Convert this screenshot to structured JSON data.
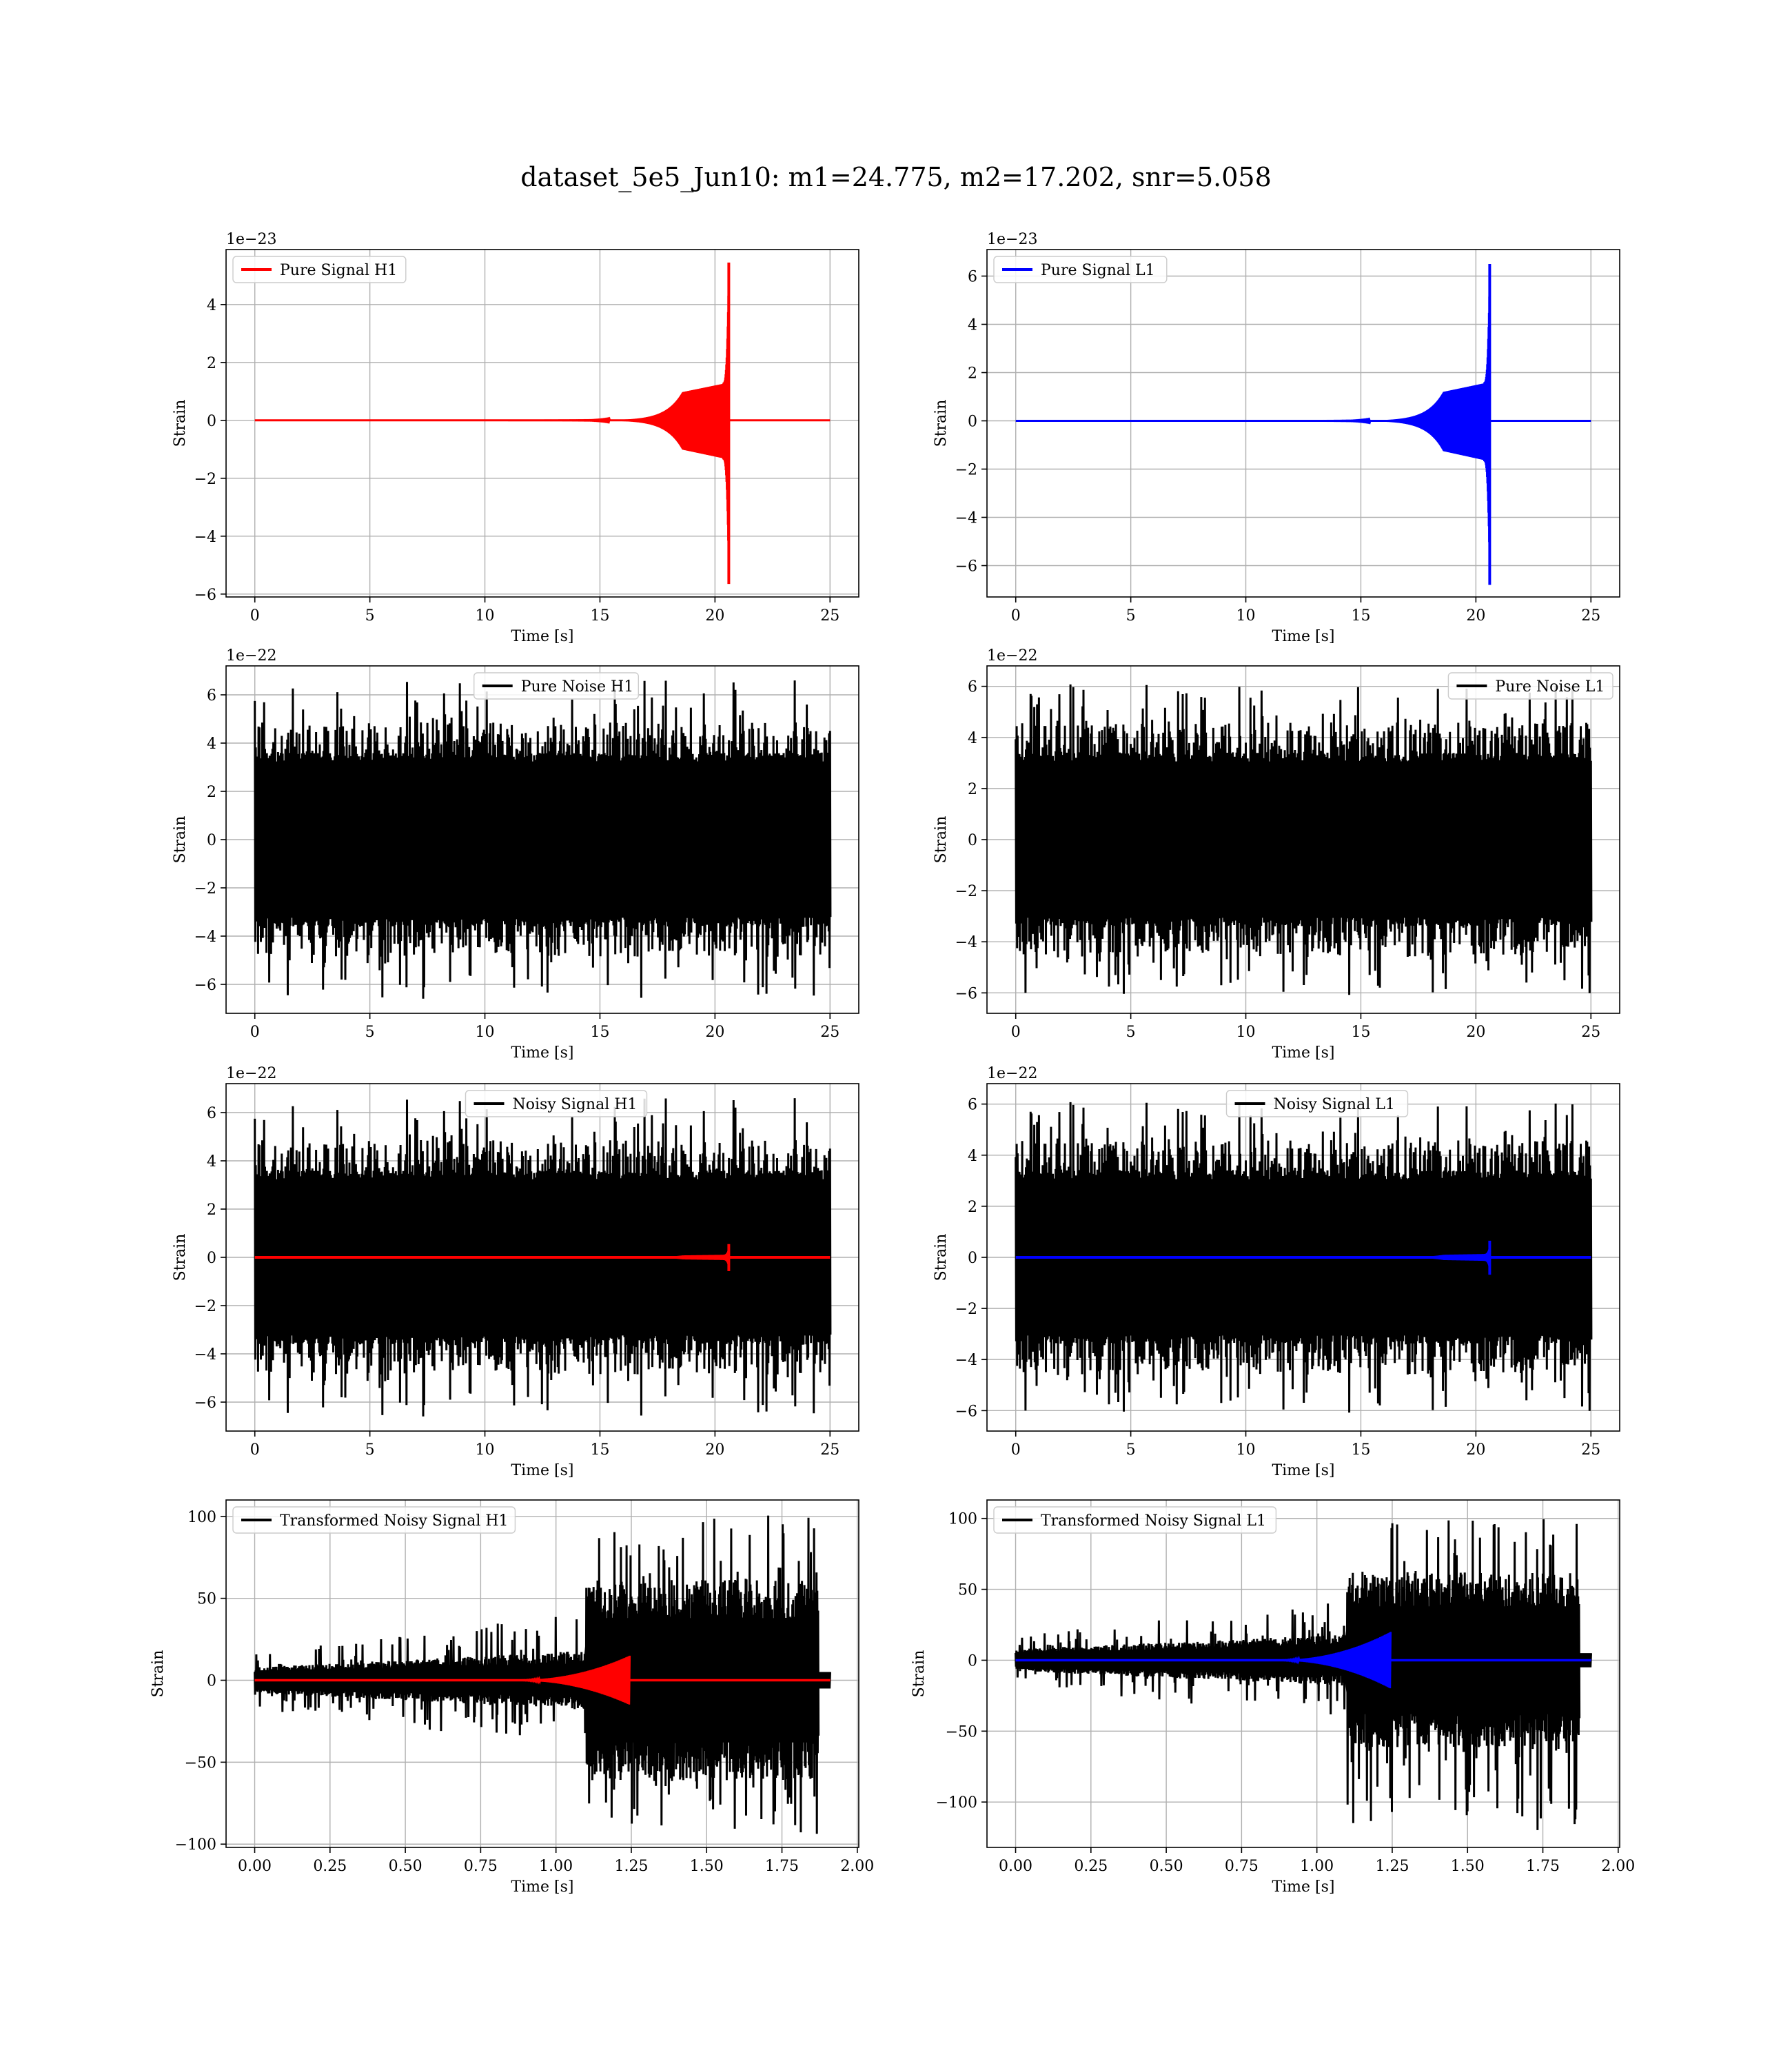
{
  "figure": {
    "title": "dataset_5e5_Jun10: m1=24.775, m2=17.202, snr=5.058"
  },
  "chart_data": [
    {
      "type": "line",
      "legend": "Pure Signal H1",
      "legend_position": "upper left",
      "color": "#ff0000",
      "kind": "chirp",
      "xlabel": "Time [s]",
      "ylabel": "Strain",
      "offset_text": "1e−23",
      "xlim": [
        -1.25,
        26.25
      ],
      "ylim": [
        -6.1,
        5.9
      ],
      "xticks": [
        0,
        5,
        10,
        15,
        20,
        25
      ],
      "xtick_labels": [
        "0",
        "5",
        "10",
        "15",
        "20",
        "25"
      ],
      "yticks": [
        -6,
        -4,
        -2,
        0,
        2,
        4
      ],
      "ytick_labels": [
        "−6",
        "−4",
        "−2",
        "0",
        "2",
        "4"
      ],
      "grid": true,
      "signal": {
        "duration": 25,
        "merger_time": 20.6,
        "peak_pos": 5.45,
        "peak_neg": -5.65,
        "plateau": 1.3
      }
    },
    {
      "type": "line",
      "legend": "Pure Signal L1",
      "legend_position": "upper left",
      "color": "#0000ff",
      "kind": "chirp",
      "xlabel": "Time [s]",
      "ylabel": "Strain",
      "offset_text": "1e−23",
      "xlim": [
        -1.25,
        26.25
      ],
      "ylim": [
        -7.3,
        7.1
      ],
      "xticks": [
        0,
        5,
        10,
        15,
        20,
        25
      ],
      "xtick_labels": [
        "0",
        "5",
        "10",
        "15",
        "20",
        "25"
      ],
      "yticks": [
        -6,
        -4,
        -2,
        0,
        2,
        4,
        6
      ],
      "ytick_labels": [
        "−6",
        "−4",
        "−2",
        "0",
        "2",
        "4",
        "6"
      ],
      "grid": true,
      "signal": {
        "duration": 25,
        "merger_time": 20.6,
        "peak_pos": 6.5,
        "peak_neg": -6.8,
        "plateau": 1.6
      }
    },
    {
      "type": "line",
      "legend": "Pure Noise H1",
      "legend_position": "upper center",
      "color": "#000000",
      "kind": "noise",
      "xlabel": "Time [s]",
      "ylabel": "Strain",
      "offset_text": "1e−22",
      "xlim": [
        -1.25,
        26.25
      ],
      "ylim": [
        -7.2,
        7.2
      ],
      "xticks": [
        0,
        5,
        10,
        15,
        20,
        25
      ],
      "xtick_labels": [
        "0",
        "5",
        "10",
        "15",
        "20",
        "25"
      ],
      "yticks": [
        -6,
        -4,
        -2,
        0,
        2,
        4,
        6
      ],
      "ytick_labels": [
        "−6",
        "−4",
        "−2",
        "0",
        "2",
        "4",
        "6"
      ],
      "grid": true,
      "noise": {
        "duration": 25,
        "band": 3.6,
        "max": 6.6,
        "min": -6.6,
        "seed": 11
      }
    },
    {
      "type": "line",
      "legend": "Pure Noise L1",
      "legend_position": "upper right",
      "color": "#000000",
      "kind": "noise",
      "xlabel": "Time [s]",
      "ylabel": "Strain",
      "offset_text": "1e−22",
      "xlim": [
        -1.25,
        26.25
      ],
      "ylim": [
        -6.8,
        6.8
      ],
      "xticks": [
        0,
        5,
        10,
        15,
        20,
        25
      ],
      "xtick_labels": [
        "0",
        "5",
        "10",
        "15",
        "20",
        "25"
      ],
      "yticks": [
        -6,
        -4,
        -2,
        0,
        2,
        4,
        6
      ],
      "ytick_labels": [
        "−6",
        "−4",
        "−2",
        "0",
        "2",
        "4",
        "6"
      ],
      "grid": true,
      "noise": {
        "duration": 25,
        "band": 3.4,
        "max": 6.1,
        "min": -6.1,
        "seed": 23
      }
    },
    {
      "type": "line",
      "legend": "Noisy Signal H1",
      "legend_position": "upper center",
      "color": "#000000",
      "overlay_color": "#ff0000",
      "kind": "noisy",
      "xlabel": "Time [s]",
      "ylabel": "Strain",
      "offset_text": "1e−22",
      "xlim": [
        -1.25,
        26.25
      ],
      "ylim": [
        -7.2,
        7.2
      ],
      "xticks": [
        0,
        5,
        10,
        15,
        20,
        25
      ],
      "xtick_labels": [
        "0",
        "5",
        "10",
        "15",
        "20",
        "25"
      ],
      "yticks": [
        -6,
        -4,
        -2,
        0,
        2,
        4,
        6
      ],
      "ytick_labels": [
        "−6",
        "−4",
        "−2",
        "0",
        "2",
        "4",
        "6"
      ],
      "grid": true,
      "noise": {
        "duration": 25,
        "band": 3.6,
        "max": 6.6,
        "min": -6.6,
        "seed": 11
      },
      "signal": {
        "duration": 25,
        "merger_time": 20.6,
        "peak_pos": 0.55,
        "peak_neg": -0.57,
        "plateau": 0.13
      }
    },
    {
      "type": "line",
      "legend": "Noisy Signal L1",
      "legend_position": "upper center",
      "color": "#000000",
      "overlay_color": "#0000ff",
      "kind": "noisy",
      "xlabel": "Time [s]",
      "ylabel": "Strain",
      "offset_text": "1e−22",
      "xlim": [
        -1.25,
        26.25
      ],
      "ylim": [
        -6.8,
        6.8
      ],
      "xticks": [
        0,
        5,
        10,
        15,
        20,
        25
      ],
      "xtick_labels": [
        "0",
        "5",
        "10",
        "15",
        "20",
        "25"
      ],
      "yticks": [
        -6,
        -4,
        -2,
        0,
        2,
        4,
        6
      ],
      "ytick_labels": [
        "−6",
        "−4",
        "−2",
        "0",
        "2",
        "4",
        "6"
      ],
      "grid": true,
      "noise": {
        "duration": 25,
        "band": 3.4,
        "max": 6.1,
        "min": -6.1,
        "seed": 23
      },
      "signal": {
        "duration": 25,
        "merger_time": 20.6,
        "peak_pos": 0.65,
        "peak_neg": -0.68,
        "plateau": 0.16
      }
    },
    {
      "type": "line",
      "legend": "Transformed Noisy Signal H1",
      "legend_position": "upper left",
      "color": "#000000",
      "overlay_color": "#ff0000",
      "kind": "transformed",
      "xlabel": "Time [s]",
      "ylabel": "Strain",
      "offset_text": "",
      "xlim": [
        -0.095,
        2.005
      ],
      "ylim": [
        -102,
        110
      ],
      "xticks": [
        0.0,
        0.25,
        0.5,
        0.75,
        1.0,
        1.25,
        1.5,
        1.75,
        2.0
      ],
      "xtick_labels": [
        "0.00",
        "0.25",
        "0.50",
        "0.75",
        "1.00",
        "1.25",
        "1.50",
        "1.75",
        "2.00"
      ],
      "yticks": [
        -100,
        -50,
        0,
        50,
        100
      ],
      "ytick_labels": [
        "−100",
        "−50",
        "0",
        "50",
        "100"
      ],
      "grid": true,
      "transformed": {
        "end": 1.91,
        "noise_end": 1.87,
        "jump": 1.1,
        "low_band": 6,
        "high_band": 38,
        "max": 102,
        "min": -95,
        "merger": 1.245,
        "signal_peak": 15,
        "seed": 37
      }
    },
    {
      "type": "line",
      "legend": "Transformed Noisy Signal L1",
      "legend_position": "upper left",
      "color": "#000000",
      "overlay_color": "#0000ff",
      "kind": "transformed",
      "xlabel": "Time [s]",
      "ylabel": "Strain",
      "offset_text": "",
      "xlim": [
        -0.095,
        2.005
      ],
      "ylim": [
        -132,
        113
      ],
      "xticks": [
        0.0,
        0.25,
        0.5,
        0.75,
        1.0,
        1.25,
        1.5,
        1.75,
        2.0
      ],
      "xtick_labels": [
        "0.00",
        "0.25",
        "0.50",
        "0.75",
        "1.00",
        "1.25",
        "1.50",
        "1.75",
        "2.00"
      ],
      "yticks": [
        -100,
        -50,
        0,
        50,
        100
      ],
      "ytick_labels": [
        "−100",
        "−50",
        "0",
        "50",
        "100"
      ],
      "grid": true,
      "transformed": {
        "end": 1.91,
        "noise_end": 1.87,
        "jump": 1.1,
        "low_band": 6,
        "high_band": 38,
        "max": 100,
        "min": -123,
        "merger": 1.245,
        "signal_peak": 20,
        "seed": 53
      }
    }
  ]
}
